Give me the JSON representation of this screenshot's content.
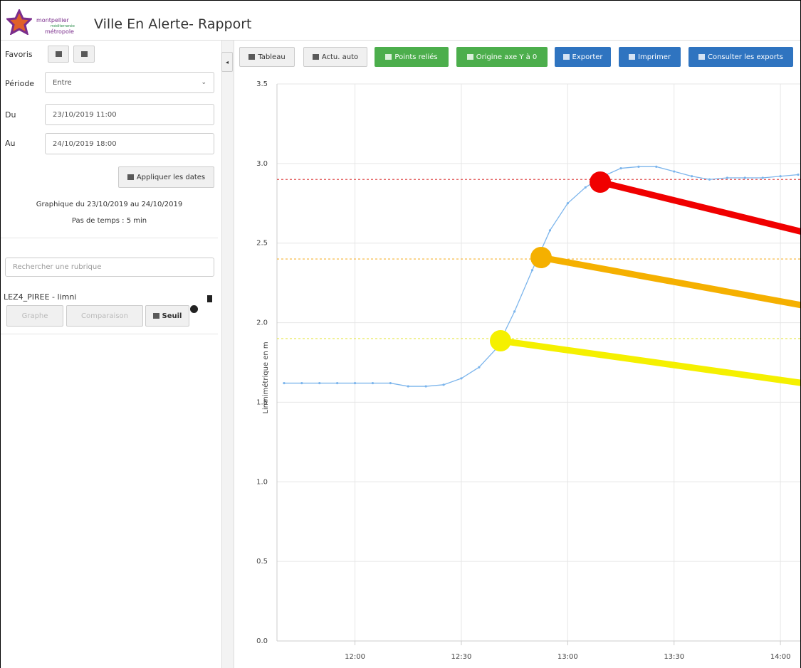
{
  "header": {
    "logo": [
      "montpellier",
      "méditerranée",
      "métropole"
    ],
    "title": "Ville En Alerte- Rapport"
  },
  "sidebar": {
    "favoris": "Favoris",
    "periode": {
      "label": "Période",
      "value": "Entre"
    },
    "du": {
      "label": "Du",
      "value": "23/10/2019 11:00"
    },
    "au": {
      "label": "Au",
      "value": "24/10/2019 18:00"
    },
    "apply": "Appliquer les dates",
    "summary": [
      "Graphique du 23/10/2019 au 24/10/2019",
      "Pas de temps : 5 min"
    ],
    "search": "Rechercher une rubrique",
    "item": {
      "name": "LEZ4_PIREE - limni",
      "buttons": [
        "Graphe",
        "Comparaison",
        "Seuil"
      ]
    }
  },
  "toolbar": [
    "Tableau",
    "Actu. auto",
    "Points reliés",
    "Origine axe Y à 0",
    "Exporter",
    "Imprimer",
    "Consulter les exports"
  ],
  "chart_data": {
    "type": "line",
    "y_label": "Limnimétrique en m",
    "x": [
      700,
      705,
      710,
      715,
      720,
      725,
      730,
      735,
      740,
      745,
      750,
      755,
      760,
      765,
      770,
      775,
      780,
      785,
      790,
      795,
      800,
      805,
      810,
      815,
      820,
      825,
      830,
      835,
      840,
      845
    ],
    "series": [
      {
        "color": "#7cb5ec",
        "values": [
          1.62,
          1.62,
          1.62,
          1.62,
          1.62,
          1.62,
          1.62,
          1.6,
          1.6,
          1.61,
          1.65,
          1.72,
          1.84,
          2.07,
          2.33,
          2.58,
          2.75,
          2.85,
          2.92,
          2.97,
          2.98,
          2.98,
          2.95,
          2.92,
          2.9,
          2.91,
          2.91,
          2.91,
          2.92,
          2.93
        ]
      }
    ],
    "thresholds": [
      {
        "value": 2.9,
        "color": "#e05050"
      },
      {
        "value": 2.4,
        "color": "#f5b335"
      },
      {
        "value": 1.9,
        "color": "#e8e84a"
      }
    ],
    "xlim": [
      698,
      846
    ],
    "xticks": [
      {
        "value": 720,
        "label": "12:00"
      },
      {
        "value": 750,
        "label": "12:30"
      },
      {
        "value": 780,
        "label": "13:00"
      },
      {
        "value": 810,
        "label": "13:30"
      },
      {
        "value": 840,
        "label": "14:00"
      }
    ],
    "ylim": [
      0,
      3.5
    ],
    "yticks": [
      {
        "value": 0,
        "label": "0.0"
      },
      0.5,
      {
        "value": 1,
        "label": "1.0"
      },
      1.5,
      {
        "value": 2,
        "label": "2.0"
      },
      2.5,
      {
        "value": 3,
        "label": "3.0"
      },
      3.5
    ],
    "grid": true
  }
}
